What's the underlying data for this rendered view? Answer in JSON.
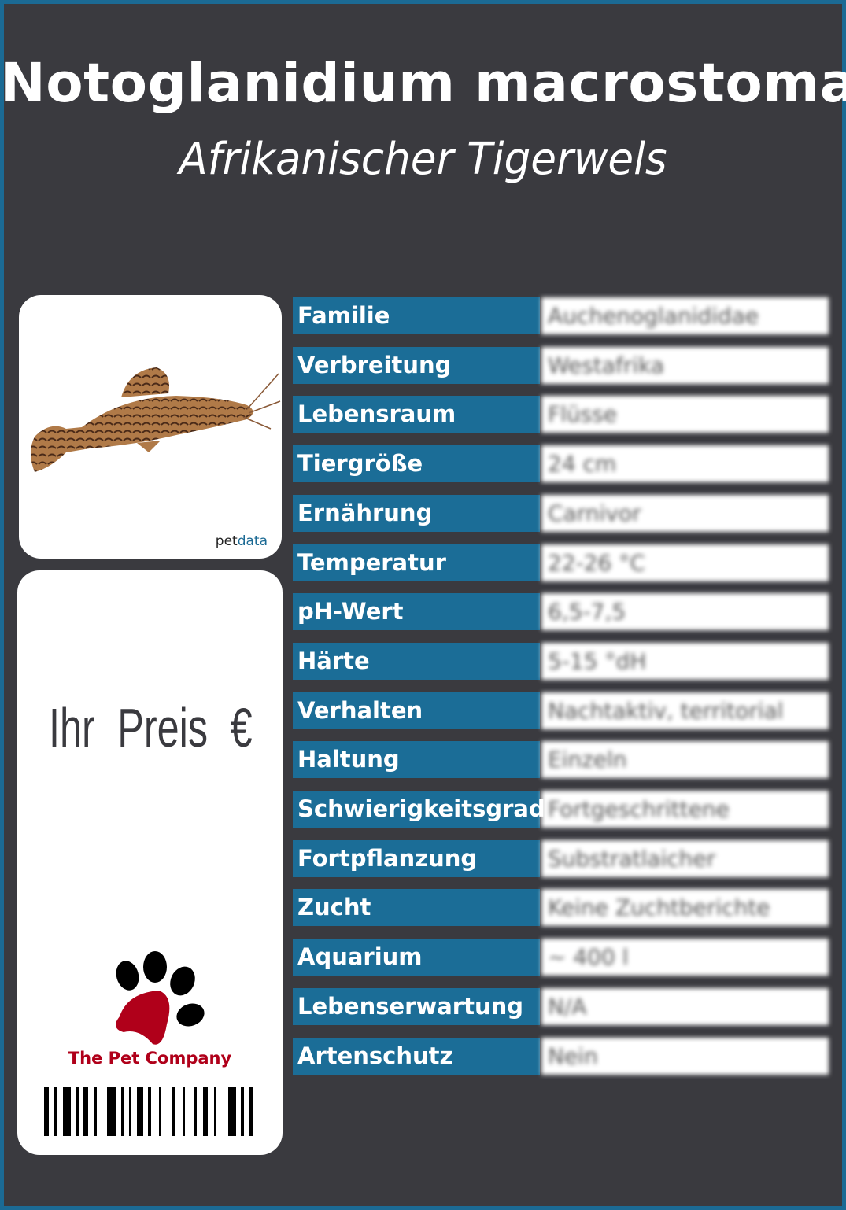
{
  "header": {
    "title": "Notoglanidium macrostoma",
    "subtitle": "Afrikanischer Tigerwels"
  },
  "image_card": {
    "credit_prefix": "pet",
    "credit_suffix": "data"
  },
  "price_card": {
    "price_label": "Ihr Preis €",
    "company": "The Pet Company"
  },
  "colors": {
    "background": "#3a3a3f",
    "accent": "#1b6d97",
    "logo_red": "#b0001a"
  },
  "table": {
    "rows": [
      {
        "label": "Familie",
        "value": "Auchenoglanididae"
      },
      {
        "label": "Verbreitung",
        "value": "Westafrika"
      },
      {
        "label": "Lebensraum",
        "value": "Flüsse"
      },
      {
        "label": "Tiergröße",
        "value": "24 cm"
      },
      {
        "label": "Ernährung",
        "value": "Carnivor"
      },
      {
        "label": "Temperatur",
        "value": "22-26 °C"
      },
      {
        "label": "pH-Wert",
        "value": "6,5-7,5"
      },
      {
        "label": "Härte",
        "value": "5-15 °dH"
      },
      {
        "label": "Verhalten",
        "value": "Nachtaktiv, territorial"
      },
      {
        "label": "Haltung",
        "value": "Einzeln"
      },
      {
        "label": "Schwierigkeitsgrad",
        "value": "Fortgeschrittene"
      },
      {
        "label": "Fortpflanzung",
        "value": "Substratlaicher"
      },
      {
        "label": "Zucht",
        "value": "Keine Zuchtberichte"
      },
      {
        "label": "Aquarium",
        "value": "~ 400 l"
      },
      {
        "label": "Lebenserwartung",
        "value": "N/A"
      },
      {
        "label": "Artenschutz",
        "value": "Nein"
      }
    ]
  }
}
